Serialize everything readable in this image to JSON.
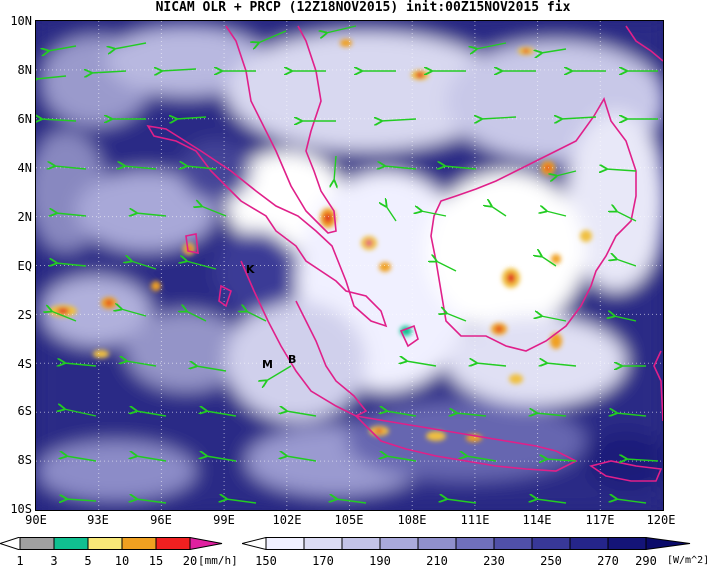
{
  "title": "NICAM OLR + PRCP (12Z18NOV2015) init:00Z15NOV2015 fix",
  "map": {
    "lat_labels": [
      "10N",
      "8N",
      "6N",
      "4N",
      "2N",
      "EQ",
      "2S",
      "4S",
      "6S",
      "8S",
      "10S"
    ],
    "lon_labels": [
      "90E",
      "93E",
      "96E",
      "99E",
      "102E",
      "105E",
      "108E",
      "111E",
      "114E",
      "117E",
      "120E"
    ],
    "station_labels": [
      "K",
      "M",
      "B"
    ]
  },
  "precip_colorbar": {
    "ticks": [
      "1",
      "3",
      "5",
      "10",
      "15",
      "20"
    ],
    "unit": "[mm/h]",
    "colors": [
      "#ffffff",
      "#a0a0a0",
      "#10c090",
      "#f8e878",
      "#f0a020",
      "#f02020",
      "#e020a0"
    ]
  },
  "olr_colorbar": {
    "ticks": [
      "150",
      "170",
      "190",
      "210",
      "230",
      "250",
      "270",
      "290"
    ],
    "unit": "[W/m^2]",
    "colors": [
      "#ffffff",
      "#f0f0ff",
      "#dcdcf4",
      "#c4c4e8",
      "#aaaadc",
      "#9090cc",
      "#7070bc",
      "#5050a8",
      "#383898",
      "#25258a",
      "#141478",
      "#0a0a6a"
    ]
  },
  "colors": {
    "coastline": "#e0208a",
    "wind_vector": "#22cc22"
  }
}
